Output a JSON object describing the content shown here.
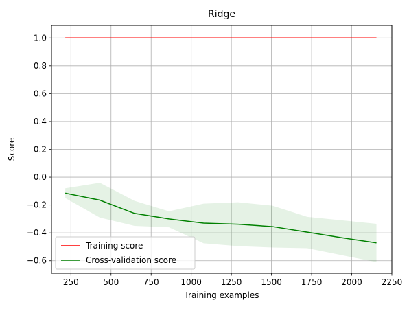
{
  "chart_data": {
    "type": "line",
    "title": "Ridge",
    "xlabel": "Training examples",
    "ylabel": "Score",
    "xlim": [
      129,
      2250
    ],
    "ylim": [
      -0.69,
      1.09
    ],
    "xticks": [
      250,
      500,
      750,
      1000,
      1250,
      1500,
      1750,
      2000,
      2250
    ],
    "yticks": [
      -0.6,
      -0.4,
      -0.2,
      0.0,
      0.2,
      0.4,
      0.6,
      0.8,
      1.0
    ],
    "xtick_labels": [
      "250",
      "500",
      "750",
      "1000",
      "1250",
      "1500",
      "1750",
      "2000",
      "2250"
    ],
    "ytick_labels": [
      "−0.6",
      "−0.4",
      "−0.2",
      "0.0",
      "0.2",
      "0.4",
      "0.6",
      "0.8",
      "1.0"
    ],
    "grid": true,
    "legend_position": "lower-left",
    "x": [
      215,
      430,
      646,
      861,
      1077,
      1292,
      1507,
      1723,
      1938,
      2154
    ],
    "series": [
      {
        "name": "Training score",
        "color": "#ff0000",
        "values": [
          1.0,
          1.0,
          1.0,
          1.0,
          1.0,
          1.0,
          1.0,
          1.0,
          1.0,
          1.0
        ],
        "band_upper": [
          1.0,
          1.0,
          1.0,
          1.0,
          1.0,
          1.0,
          1.0,
          1.0,
          1.0,
          1.0
        ],
        "band_lower": [
          1.0,
          1.0,
          1.0,
          1.0,
          1.0,
          1.0,
          1.0,
          1.0,
          1.0,
          1.0
        ]
      },
      {
        "name": "Cross-validation score",
        "color": "#008000",
        "values": [
          -0.115,
          -0.165,
          -0.26,
          -0.3,
          -0.33,
          -0.338,
          -0.355,
          -0.395,
          -0.435,
          -0.472
        ],
        "band_upper": [
          -0.08,
          -0.04,
          -0.17,
          -0.245,
          -0.19,
          -0.18,
          -0.205,
          -0.285,
          -0.31,
          -0.335
        ],
        "band_lower": [
          -0.15,
          -0.29,
          -0.35,
          -0.36,
          -0.475,
          -0.495,
          -0.505,
          -0.51,
          -0.56,
          -0.61
        ]
      }
    ]
  }
}
